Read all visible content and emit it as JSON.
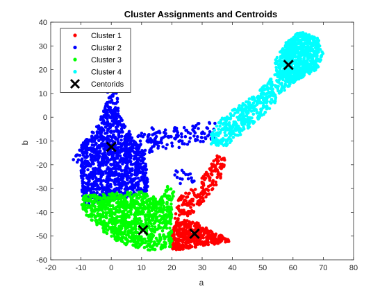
{
  "chart_data": {
    "type": "scatter",
    "title": "Cluster Assignments and Centroids",
    "xlabel": "a",
    "ylabel": "b",
    "xlim": [
      -20,
      80
    ],
    "ylim": [
      -60,
      40
    ],
    "xticks": [
      -20,
      -10,
      0,
      10,
      20,
      30,
      40,
      50,
      60,
      70,
      80
    ],
    "yticks": [
      -60,
      -50,
      -40,
      -30,
      -20,
      -10,
      0,
      10,
      20,
      30,
      40
    ],
    "grid": false,
    "legend_position": "top-left",
    "series": [
      {
        "name": "Cluster 1",
        "color": "#ff0000",
        "marker": "dot",
        "regions": [
          {
            "polygon": [
              [
                20,
                -48
              ],
              [
                20,
                -56
              ],
              [
                28,
                -55
              ],
              [
                36,
                -53
              ],
              [
                40,
                -52
              ],
              [
                35,
                -49
              ],
              [
                28,
                -44
              ],
              [
                22,
                -43
              ]
            ],
            "count": 420
          },
          {
            "polygon": [
              [
                21,
                -43
              ],
              [
                26,
                -42
              ],
              [
                31,
                -35
              ],
              [
                36,
                -26
              ],
              [
                38,
                -17
              ],
              [
                35,
                -16
              ],
              [
                31,
                -24
              ],
              [
                27,
                -30
              ],
              [
                22,
                -34
              ]
            ],
            "count": 190
          }
        ]
      },
      {
        "name": "Cluster 2",
        "color": "#0000ff",
        "marker": "dot",
        "regions": [
          {
            "polygon": [
              [
                -9,
                -37
              ],
              [
                -10,
                -28
              ],
              [
                -10,
                -12
              ],
              [
                -5,
                -4
              ],
              [
                -2,
                4
              ],
              [
                -1,
                16
              ],
              [
                1,
                16
              ],
              [
                3,
                0
              ],
              [
                8,
                -10
              ],
              [
                12,
                -20
              ],
              [
                12,
                -31
              ],
              [
                5,
                -34
              ]
            ],
            "count": 1100
          },
          {
            "polygon": [
              [
                -5,
                -15
              ],
              [
                5,
                -11
              ],
              [
                15,
                -6
              ],
              [
                25,
                -3
              ],
              [
                35,
                -2
              ],
              [
                36,
                -8
              ],
              [
                30,
                -11
              ],
              [
                22,
                -13
              ],
              [
                12,
                -15
              ],
              [
                4,
                -20
              ],
              [
                -2,
                -16
              ]
            ],
            "count": 170
          },
          {
            "polygon": [
              [
                8,
                -8
              ],
              [
                15,
                -3
              ],
              [
                20,
                -8
              ],
              [
                15,
                -12
              ]
            ],
            "count": 30
          },
          {
            "polygon": [
              [
                -13,
                -18
              ],
              [
                -8,
                -8
              ],
              [
                -5,
                -16
              ],
              [
                -8,
                -22
              ]
            ],
            "count": 25
          },
          {
            "polygon": [
              [
                20,
                -22
              ],
              [
                26,
                -22
              ],
              [
                28,
                -28
              ],
              [
                22,
                -28
              ]
            ],
            "count": 18
          }
        ]
      },
      {
        "name": "Cluster 3",
        "color": "#00ff00",
        "marker": "dot",
        "regions": [
          {
            "polygon": [
              [
                -10,
                -37
              ],
              [
                -9,
                -33
              ],
              [
                10,
                -31
              ],
              [
                17,
                -35
              ],
              [
                20,
                -38
              ],
              [
                20,
                -55
              ],
              [
                12,
                -56
              ],
              [
                3,
                -53
              ],
              [
                -2,
                -49
              ],
              [
                -7,
                -44
              ]
            ],
            "count": 950
          },
          {
            "polygon": [
              [
                16,
                -35
              ],
              [
                19,
                -28
              ],
              [
                21,
                -31
              ],
              [
                20,
                -38
              ]
            ],
            "count": 35
          }
        ]
      },
      {
        "name": "Cluster 4",
        "color": "#00ffff",
        "marker": "dot",
        "regions": [
          {
            "polygon": [
              [
                54,
                24
              ],
              [
                58,
                32
              ],
              [
                62,
                36
              ],
              [
                68,
                34
              ],
              [
                70,
                27
              ],
              [
                68,
                20
              ],
              [
                62,
                16
              ],
              [
                55,
                16
              ]
            ],
            "count": 700
          },
          {
            "polygon": [
              [
                33,
                -12
              ],
              [
                38,
                -12
              ],
              [
                45,
                -5
              ],
              [
                52,
                3
              ],
              [
                58,
                12
              ],
              [
                64,
                18
              ],
              [
                60,
                22
              ],
              [
                54,
                18
              ],
              [
                48,
                10
              ],
              [
                41,
                4
              ],
              [
                35,
                -2
              ],
              [
                33,
                -7
              ]
            ],
            "count": 520
          }
        ]
      }
    ],
    "centroids": {
      "name": "Centorids",
      "color": "#000000",
      "marker": "x",
      "points": [
        {
          "x": 27.5,
          "y": -49
        },
        {
          "x": 0,
          "y": -12.5
        },
        {
          "x": 10.5,
          "y": -47.5
        },
        {
          "x": 58.5,
          "y": 22
        }
      ]
    }
  }
}
